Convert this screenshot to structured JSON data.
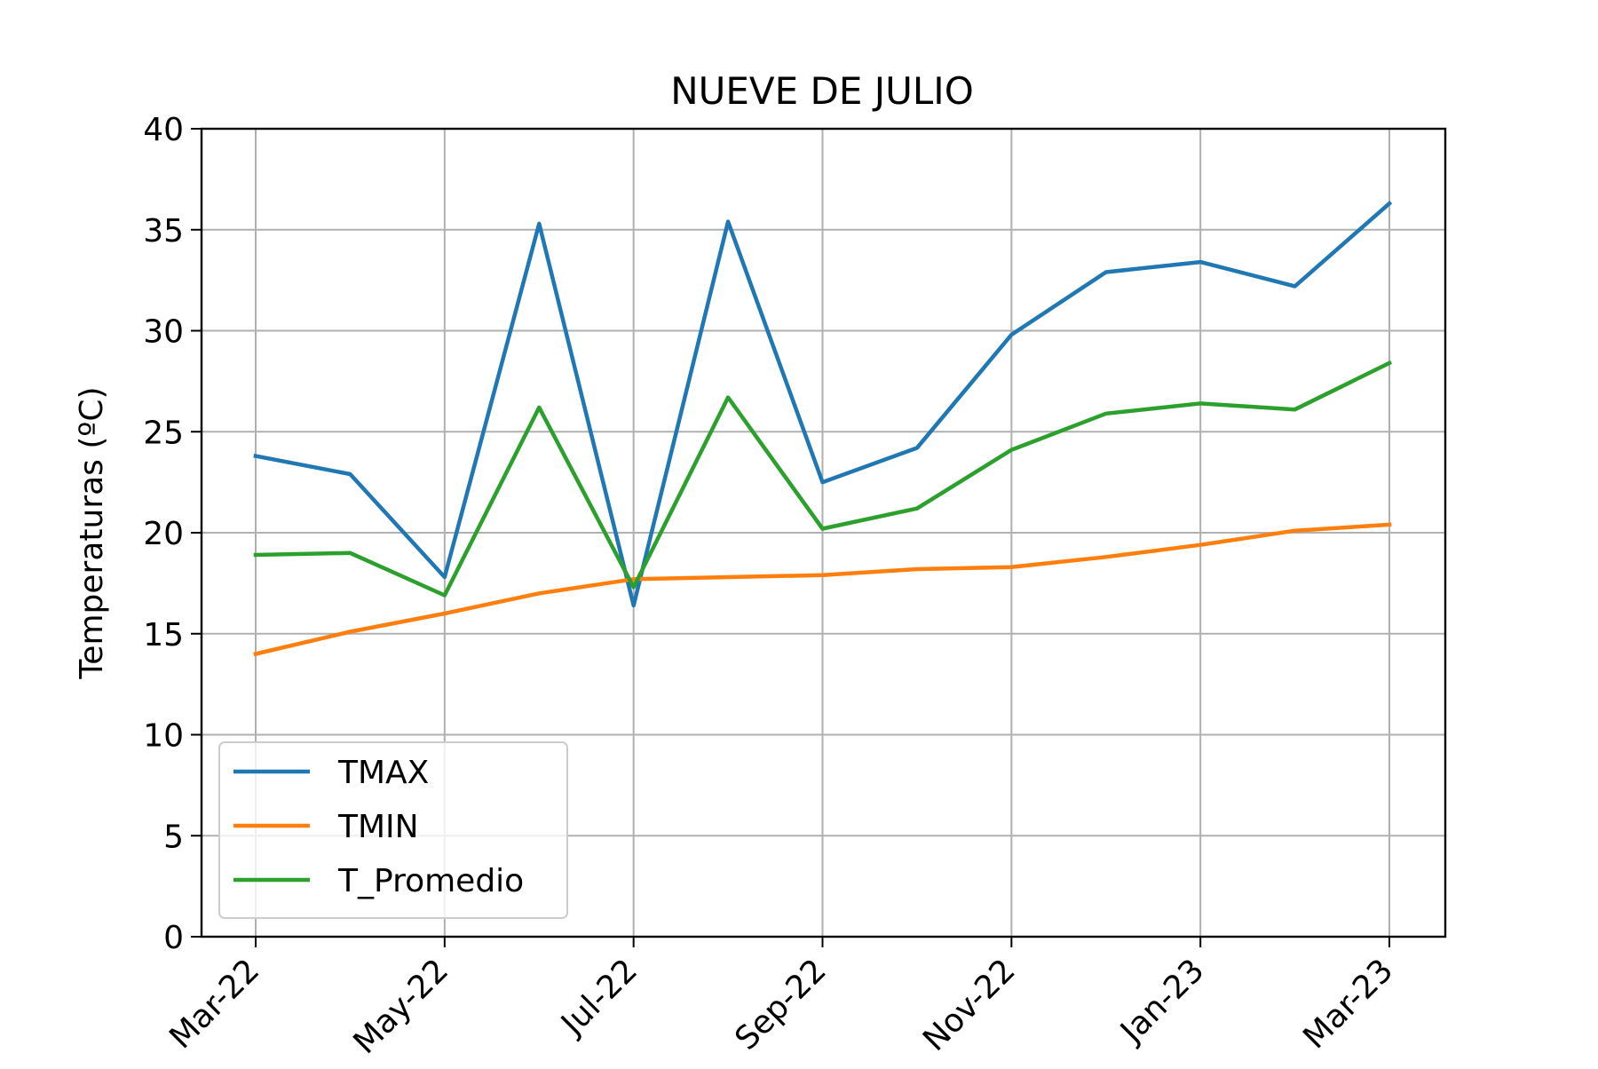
{
  "chart_data": {
    "type": "line",
    "title": "NUEVE DE JULIO",
    "xlabel": "",
    "ylabel": "Temperaturas (ºC)",
    "ylim": [
      0,
      40
    ],
    "yticks": [
      0,
      5,
      10,
      15,
      20,
      25,
      30,
      35,
      40
    ],
    "x": [
      "Mar-22",
      "Apr-22",
      "May-22",
      "Jun-22",
      "Jul-22",
      "Aug-22",
      "Sep-22",
      "Oct-22",
      "Nov-22",
      "Dec-22",
      "Jan-23",
      "Feb-23",
      "Mar-23"
    ],
    "xtick_labels": [
      "Mar-22",
      "May-22",
      "Jul-22",
      "Sep-22",
      "Nov-22",
      "Jan-23",
      "Mar-23"
    ],
    "grid": true,
    "legend_position": "lower-left",
    "series": [
      {
        "name": "TMAX",
        "color": "#1f77b4",
        "values": [
          23.8,
          22.9,
          17.8,
          35.3,
          16.4,
          35.4,
          22.5,
          24.2,
          29.8,
          32.9,
          33.4,
          32.2,
          36.3
        ]
      },
      {
        "name": "TMIN",
        "color": "#ff7f0e",
        "values": [
          14.0,
          15.1,
          16.0,
          17.0,
          17.7,
          17.8,
          17.9,
          18.2,
          18.3,
          18.8,
          19.4,
          20.1,
          20.4
        ]
      },
      {
        "name": "T_Promedio",
        "color": "#2ca02c",
        "values": [
          18.9,
          19.0,
          16.9,
          26.2,
          17.3,
          26.7,
          20.2,
          21.2,
          24.1,
          25.9,
          26.4,
          26.1,
          28.4
        ]
      }
    ]
  }
}
